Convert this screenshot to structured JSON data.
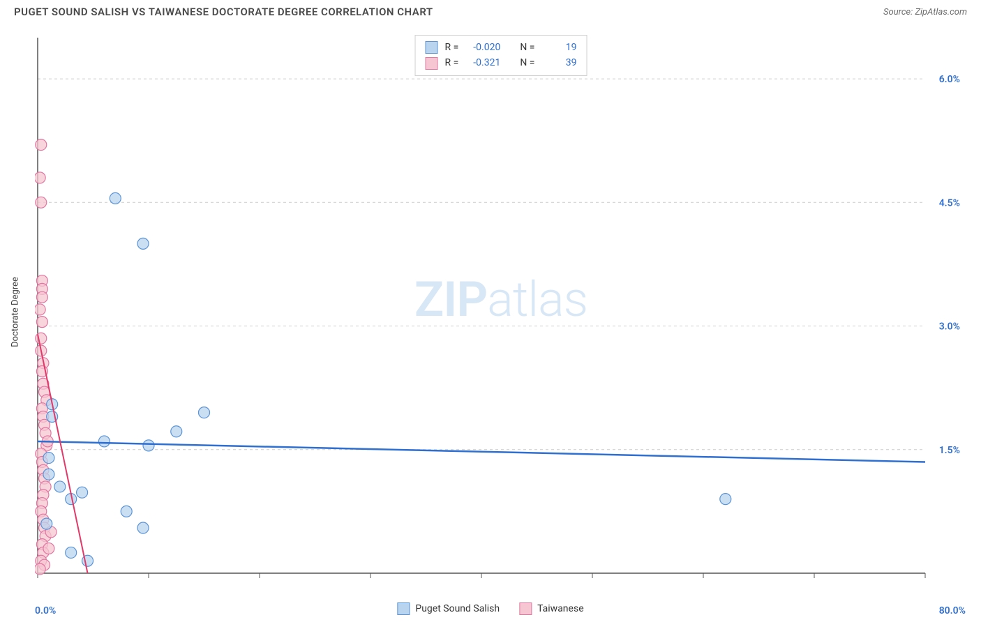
{
  "header": {
    "title": "PUGET SOUND SALISH VS TAIWANESE DOCTORATE DEGREE CORRELATION CHART",
    "source_prefix": "Source: ",
    "source_name": "ZipAtlas.com"
  },
  "ylabel": "Doctorate Degree",
  "watermark": {
    "bold": "ZIP",
    "rest": "atlas"
  },
  "chart": {
    "type": "scatter",
    "xlim": [
      0,
      80
    ],
    "ylim": [
      0,
      6.5
    ],
    "x_ticks": [
      0,
      10,
      20,
      30,
      40,
      50,
      60,
      70,
      80
    ],
    "y_gridlines": [
      1.5,
      3.0,
      4.5,
      6.0
    ],
    "y_gridline_labels": [
      "1.5%",
      "3.0%",
      "4.5%",
      "6.0%"
    ],
    "x_corner_min": "0.0%",
    "x_corner_max": "80.0%",
    "axis_color": "#555555",
    "grid_color": "#cccccc",
    "tick_label_color": "#2f6fd0",
    "background": "#ffffff",
    "marker_radius": 8,
    "series": [
      {
        "name": "Puget Sound Salish",
        "fill": "#b9d4ef",
        "stroke": "#5a93d6",
        "swatch_fill": "#b9d4ef",
        "swatch_border": "#5a93d6",
        "R": "-0.020",
        "N": "19",
        "trend": {
          "y_at_xmin": 1.6,
          "y_at_xmax": 1.35,
          "color": "#2f6fd0",
          "width": 2.5
        },
        "points": [
          [
            7.0,
            4.55
          ],
          [
            9.5,
            4.0
          ],
          [
            1.3,
            2.05
          ],
          [
            1.3,
            1.9
          ],
          [
            15.0,
            1.95
          ],
          [
            12.5,
            1.72
          ],
          [
            6.0,
            1.6
          ],
          [
            10.0,
            1.55
          ],
          [
            2.0,
            1.05
          ],
          [
            4.0,
            0.98
          ],
          [
            3.0,
            0.9
          ],
          [
            8.0,
            0.75
          ],
          [
            9.5,
            0.55
          ],
          [
            62.0,
            0.9
          ],
          [
            1.0,
            1.4
          ],
          [
            1.0,
            1.2
          ],
          [
            3.0,
            0.25
          ],
          [
            4.5,
            0.15
          ],
          [
            0.8,
            0.6
          ]
        ]
      },
      {
        "name": "Taiwanese",
        "fill": "#f6c6d2",
        "stroke": "#e077a0",
        "swatch_fill": "#f6c6d2",
        "swatch_border": "#e077a0",
        "R": "-0.321",
        "N": "39",
        "trend": {
          "y_at_xmin": 2.9,
          "y_at_xmax_x": 4.5,
          "y_at_xmax": 0.0,
          "color": "#e03a6a",
          "width": 2
        },
        "points": [
          [
            0.3,
            5.2
          ],
          [
            0.2,
            4.8
          ],
          [
            0.3,
            4.5
          ],
          [
            0.4,
            3.55
          ],
          [
            0.4,
            3.45
          ],
          [
            0.4,
            3.35
          ],
          [
            0.4,
            3.05
          ],
          [
            0.3,
            2.85
          ],
          [
            0.3,
            2.7
          ],
          [
            0.5,
            2.55
          ],
          [
            0.4,
            2.45
          ],
          [
            0.5,
            2.3
          ],
          [
            0.6,
            2.2
          ],
          [
            0.8,
            2.1
          ],
          [
            0.4,
            2.0
          ],
          [
            0.5,
            1.9
          ],
          [
            0.6,
            1.8
          ],
          [
            0.7,
            1.7
          ],
          [
            0.8,
            1.55
          ],
          [
            0.3,
            1.45
          ],
          [
            0.4,
            1.35
          ],
          [
            0.5,
            1.25
          ],
          [
            0.6,
            1.15
          ],
          [
            0.7,
            1.05
          ],
          [
            0.5,
            0.95
          ],
          [
            0.4,
            0.85
          ],
          [
            0.3,
            0.75
          ],
          [
            0.5,
            0.65
          ],
          [
            0.6,
            0.55
          ],
          [
            0.7,
            0.45
          ],
          [
            0.4,
            0.35
          ],
          [
            0.5,
            0.25
          ],
          [
            0.3,
            0.15
          ],
          [
            0.6,
            0.1
          ],
          [
            0.2,
            0.05
          ],
          [
            1.0,
            0.3
          ],
          [
            1.2,
            0.5
          ],
          [
            0.9,
            1.6
          ],
          [
            0.2,
            3.2
          ]
        ]
      }
    ]
  },
  "stats_legend": {
    "R_label": "R =",
    "N_label": "N ="
  },
  "bottom_legend_label_1": "Puget Sound Salish",
  "bottom_legend_label_2": "Taiwanese"
}
